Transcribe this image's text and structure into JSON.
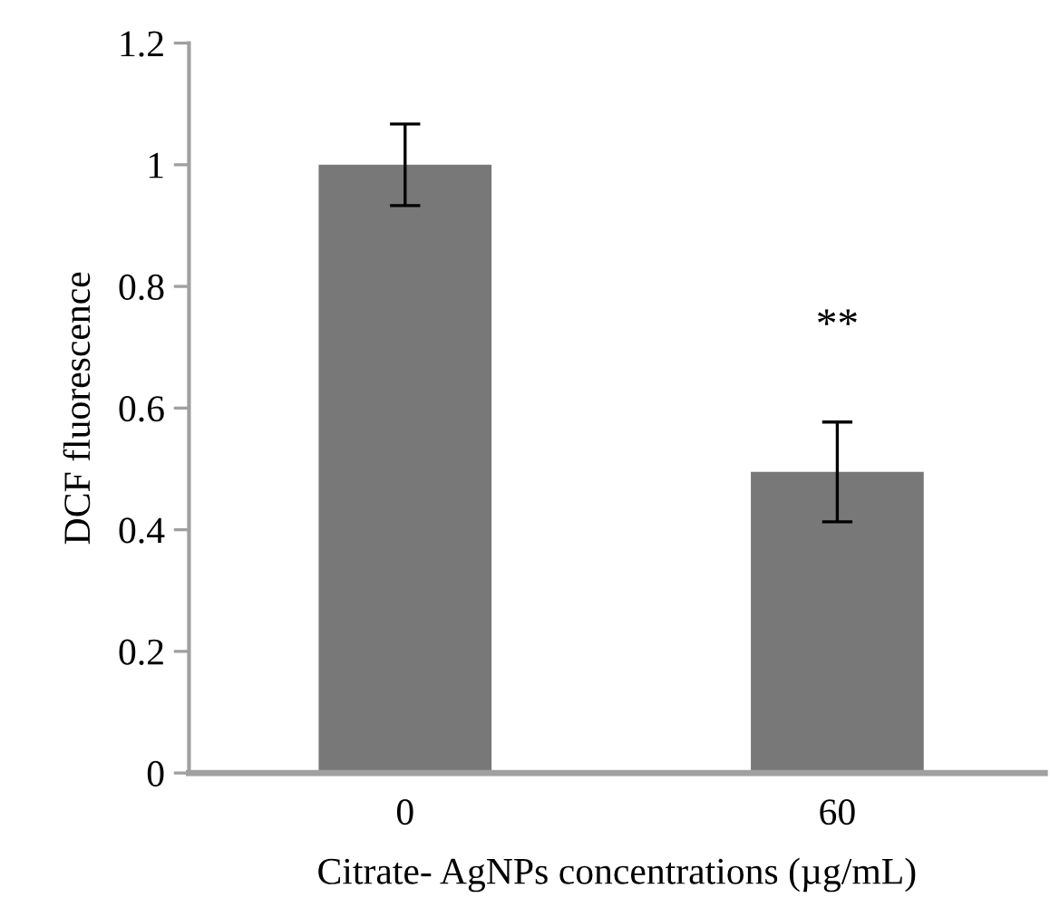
{
  "chart_data": {
    "type": "bar",
    "xlabel": "Citrate- AgNPs concentrations (µg/mL)",
    "ylabel": "DCF fluorescence",
    "categories": [
      "0",
      "60"
    ],
    "values": [
      1.0,
      0.495
    ],
    "errors": [
      0.067,
      0.082
    ],
    "color": "#787878",
    "ylim": [
      0,
      1.2
    ],
    "yticks": [
      0,
      0.2,
      0.4,
      0.6,
      0.8,
      1,
      1.2
    ],
    "annotations": [
      "**"
    ],
    "grid": false,
    "legend": false
  }
}
